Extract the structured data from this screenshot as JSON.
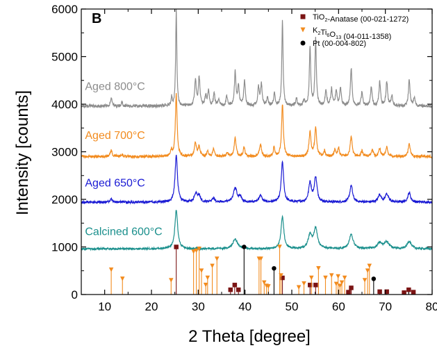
{
  "chart_data": {
    "type": "line",
    "panel_label": "B",
    "xlabel": "2 Theta [degree]",
    "ylabel": "Intensity [counts]",
    "xlim": [
      5,
      80
    ],
    "ylim": [
      0,
      6000
    ],
    "x_ticks": [
      10,
      20,
      30,
      40,
      50,
      60,
      70,
      80
    ],
    "y_ticks": [
      0,
      1000,
      2000,
      3000,
      4000,
      5000,
      6000
    ],
    "grid": false,
    "legend_position": "top-right",
    "series": [
      {
        "name": "Calcined 600°C",
        "color": "#1a8f8c",
        "baseline": 960,
        "peaks": [
          [
            25.3,
            820,
            0.35
          ],
          [
            37.9,
            200,
            0.6
          ],
          [
            48.0,
            680,
            0.35
          ],
          [
            53.9,
            280,
            0.5
          ],
          [
            55.1,
            420,
            0.45
          ],
          [
            62.7,
            300,
            0.5
          ],
          [
            68.8,
            120,
            0.6
          ],
          [
            70.3,
            140,
            0.6
          ],
          [
            75.1,
            160,
            0.5
          ]
        ]
      },
      {
        "name": "Aged 650°C",
        "color": "#1a1ad4",
        "baseline": 1940,
        "peaks": [
          [
            11.4,
            60,
            0.3
          ],
          [
            25.3,
            1000,
            0.3
          ],
          [
            29.5,
            180,
            0.4
          ],
          [
            30.2,
            120,
            0.3
          ],
          [
            33.2,
            80,
            0.4
          ],
          [
            37.9,
            300,
            0.45
          ],
          [
            39.0,
            110,
            0.3
          ],
          [
            43.3,
            150,
            0.35
          ],
          [
            48.0,
            850,
            0.3
          ],
          [
            53.9,
            400,
            0.35
          ],
          [
            55.1,
            520,
            0.35
          ],
          [
            62.7,
            350,
            0.35
          ],
          [
            68.8,
            150,
            0.4
          ],
          [
            70.3,
            170,
            0.4
          ],
          [
            75.1,
            200,
            0.35
          ]
        ]
      },
      {
        "name": "Aged 700°C",
        "color": "#f28b1e",
        "baseline": 2900,
        "peaks": [
          [
            11.4,
            130,
            0.25
          ],
          [
            13.7,
            40,
            0.25
          ],
          [
            24.3,
            120,
            0.2
          ],
          [
            25.3,
            1300,
            0.22
          ],
          [
            29.4,
            300,
            0.25
          ],
          [
            30.2,
            200,
            0.25
          ],
          [
            32.0,
            100,
            0.2
          ],
          [
            33.3,
            160,
            0.25
          ],
          [
            36.2,
            90,
            0.2
          ],
          [
            37.9,
            380,
            0.25
          ],
          [
            39.8,
            200,
            0.2
          ],
          [
            43.3,
            260,
            0.25
          ],
          [
            46.2,
            180,
            0.2
          ],
          [
            48.0,
            1100,
            0.22
          ],
          [
            53.9,
            500,
            0.25
          ],
          [
            55.1,
            600,
            0.25
          ],
          [
            57.0,
            120,
            0.2
          ],
          [
            59.2,
            140,
            0.2
          ],
          [
            60.0,
            180,
            0.2
          ],
          [
            62.7,
            420,
            0.25
          ],
          [
            65.0,
            120,
            0.25
          ],
          [
            67.2,
            140,
            0.25
          ],
          [
            68.8,
            160,
            0.25
          ],
          [
            70.3,
            200,
            0.25
          ],
          [
            75.1,
            260,
            0.25
          ]
        ]
      },
      {
        "name": "Aged 800°C",
        "color": "#8c8c8c",
        "baseline": 3960,
        "peaks": [
          [
            11.4,
            170,
            0.2
          ],
          [
            13.7,
            80,
            0.2
          ],
          [
            24.3,
            180,
            0.15
          ],
          [
            25.3,
            2000,
            0.15
          ],
          [
            29.4,
            550,
            0.2
          ],
          [
            30.2,
            600,
            0.2
          ],
          [
            31.6,
            200,
            0.2
          ],
          [
            32.2,
            300,
            0.2
          ],
          [
            33.4,
            260,
            0.2
          ],
          [
            34.4,
            150,
            0.2
          ],
          [
            36.1,
            200,
            0.2
          ],
          [
            37.9,
            700,
            0.2
          ],
          [
            38.6,
            400,
            0.2
          ],
          [
            39.9,
            520,
            0.2
          ],
          [
            42.9,
            380,
            0.2
          ],
          [
            43.5,
            450,
            0.2
          ],
          [
            44.8,
            160,
            0.2
          ],
          [
            46.3,
            250,
            0.2
          ],
          [
            48.0,
            1800,
            0.16
          ],
          [
            51.0,
            150,
            0.2
          ],
          [
            52.6,
            120,
            0.2
          ],
          [
            53.9,
            1200,
            0.18
          ],
          [
            55.1,
            1400,
            0.18
          ],
          [
            57.3,
            320,
            0.2
          ],
          [
            58.5,
            350,
            0.2
          ],
          [
            59.5,
            320,
            0.2
          ],
          [
            60.4,
            380,
            0.2
          ],
          [
            62.7,
            800,
            0.2
          ],
          [
            65.0,
            300,
            0.2
          ],
          [
            67.0,
            400,
            0.2
          ],
          [
            68.8,
            500,
            0.2
          ],
          [
            70.3,
            520,
            0.2
          ],
          [
            71.4,
            220,
            0.2
          ],
          [
            75.1,
            550,
            0.2
          ],
          [
            76.2,
            180,
            0.2
          ]
        ]
      }
    ],
    "series_labels": [
      {
        "text": "Calcined 600°C",
        "series": 0,
        "x": 5.8,
        "y": 1250
      },
      {
        "text": "Aged 650°C",
        "series": 1,
        "x": 5.8,
        "y": 2270
      },
      {
        "text": "Aged 700°C",
        "series": 2,
        "x": 5.8,
        "y": 3270
      },
      {
        "text": "Aged 800°C",
        "series": 3,
        "x": 5.8,
        "y": 4300
      }
    ],
    "references": [
      {
        "name": "TiO2-Anatase (00-021-1272)",
        "legend_parts": [
          [
            "TiO",
            false
          ],
          [
            "2",
            true
          ],
          [
            "-Anatase (00-021-1272)",
            false
          ]
        ],
        "marker": "square",
        "color": "#7b1414",
        "lines": [
          [
            25.3,
            1000
          ],
          [
            36.9,
            100
          ],
          [
            37.8,
            200
          ],
          [
            38.6,
            100
          ],
          [
            48.0,
            350
          ],
          [
            53.9,
            200
          ],
          [
            55.1,
            200
          ],
          [
            62.1,
            50
          ],
          [
            62.7,
            140
          ],
          [
            68.8,
            60
          ],
          [
            70.3,
            60
          ],
          [
            74.0,
            40
          ],
          [
            75.0,
            100
          ],
          [
            76.0,
            50
          ]
        ]
      },
      {
        "name": "K2Ti6O13 (04-011-1358)",
        "legend_parts": [
          [
            "K",
            false
          ],
          [
            "2",
            true
          ],
          [
            "Ti",
            false
          ],
          [
            "6",
            true
          ],
          [
            "O",
            false
          ],
          [
            "13",
            true
          ],
          [
            " (04-011-1358)",
            false
          ]
        ],
        "marker": "triangle-down",
        "color": "#f28b1e",
        "lines": [
          [
            11.4,
            520
          ],
          [
            13.8,
            330
          ],
          [
            24.2,
            300
          ],
          [
            29.0,
            900
          ],
          [
            29.6,
            920
          ],
          [
            30.2,
            960
          ],
          [
            30.7,
            500
          ],
          [
            31.6,
            200
          ],
          [
            32.0,
            350
          ],
          [
            33.0,
            600
          ],
          [
            34.0,
            750
          ],
          [
            43.0,
            750
          ],
          [
            43.4,
            750
          ],
          [
            44.1,
            250
          ],
          [
            44.6,
            180
          ],
          [
            45.0,
            170
          ],
          [
            47.4,
            1000
          ],
          [
            47.7,
            400
          ],
          [
            51.5,
            150
          ],
          [
            52.6,
            230
          ],
          [
            54.2,
            350
          ],
          [
            55.7,
            550
          ],
          [
            57.2,
            350
          ],
          [
            58.5,
            400
          ],
          [
            59.5,
            220
          ],
          [
            59.9,
            380
          ],
          [
            60.3,
            180
          ],
          [
            60.7,
            250
          ],
          [
            61.3,
            350
          ],
          [
            65.6,
            300
          ],
          [
            66.2,
            500
          ],
          [
            66.6,
            600
          ]
        ]
      },
      {
        "name": "Pt (00-004-802)",
        "legend_parts": [
          [
            "Pt (00-004-802)",
            false
          ]
        ],
        "marker": "circle",
        "color": "#000000",
        "lines": [
          [
            39.8,
            1000
          ],
          [
            46.2,
            550
          ],
          [
            67.5,
            330
          ]
        ]
      }
    ]
  }
}
